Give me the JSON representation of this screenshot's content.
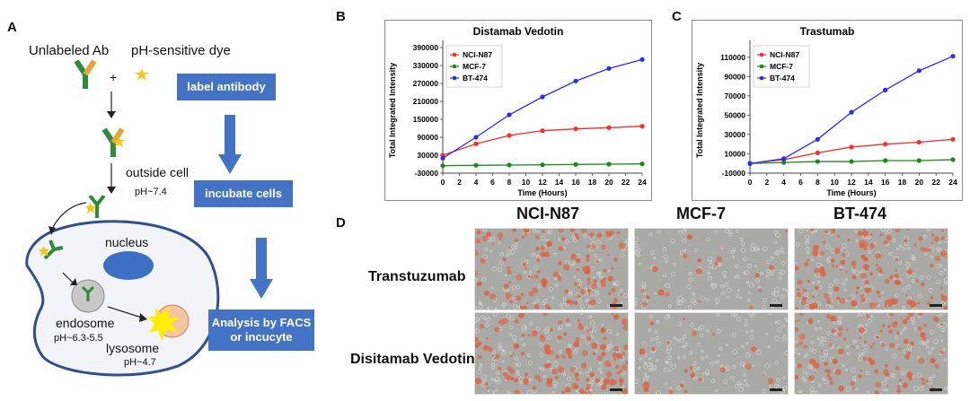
{
  "panel_a": {
    "letter": "A",
    "unlabeled_ab": "Unlabeled Ab",
    "plus": "+",
    "ph_dye": "pH-sensitive dye",
    "label_antibody": "label antibody",
    "outside_cell": "outside cell",
    "outside_ph": "pH~7.4",
    "incubate_cells": "incubate cells",
    "nucleus": "nucleus",
    "endosome": "endosome",
    "endosome_ph": "pH~6.3-5.5",
    "lysosome": "lysosome",
    "lysosome_ph": "pH~4.7",
    "analysis_line1": "Analysis by FACS",
    "analysis_line2": "or incucyte",
    "colors": {
      "box": "#4472c4",
      "antibody": "#2e8b3a",
      "dye": "#f5c518",
      "cell_outline": "#2f4f8f",
      "nucleus": "#3d6fc4"
    }
  },
  "panel_b": {
    "letter": "B"
  },
  "panel_c": {
    "letter": "C"
  },
  "panel_d": {
    "letter": "D",
    "columns": [
      "NCI-N87",
      "MCF-7",
      "BT-474"
    ],
    "rows": [
      "Transtuzumab",
      "Disitamab Vedotin"
    ],
    "cell_density": [
      [
        0.55,
        0.08,
        0.6
      ],
      [
        0.6,
        0.1,
        0.45
      ]
    ]
  },
  "chart_data": [
    {
      "type": "line",
      "title": "Distamab Vedotin",
      "xlabel": "Time (Hours)",
      "ylabel": "Total Integrated Intensity",
      "x": [
        0,
        4,
        8,
        12,
        16,
        20,
        24
      ],
      "xticks": [
        "0",
        "2",
        "4",
        "6",
        "8",
        "10",
        "12",
        "14",
        "16",
        "18",
        "20",
        "22",
        "24"
      ],
      "yticks": [
        "390000",
        "330000",
        "270000",
        "210000",
        "150000",
        "90000",
        "30000",
        "-30000"
      ],
      "ylim": [
        -30000,
        390000
      ],
      "xlim": [
        0,
        24
      ],
      "legend_position": "top-left",
      "series": [
        {
          "name": "NCI-N87",
          "color": "#ff2a2a",
          "values": [
            30000,
            68000,
            96000,
            112000,
            118000,
            122000,
            127000
          ]
        },
        {
          "name": "MCF-7",
          "color": "#1a8a1a",
          "values": [
            -5000,
            -4000,
            -3000,
            -2000,
            -1000,
            0,
            1000
          ]
        },
        {
          "name": "BT-474",
          "color": "#2a2aff",
          "values": [
            20000,
            90000,
            165000,
            225000,
            278000,
            320000,
            350000
          ]
        }
      ]
    },
    {
      "type": "line",
      "title": "Trastumab",
      "xlabel": "Time (Hours)",
      "ylabel": "Total Integrated Intensity",
      "x": [
        0,
        4,
        8,
        12,
        16,
        20,
        24
      ],
      "xticks": [
        "0",
        "2",
        "4",
        "6",
        "8",
        "10",
        "12",
        "14",
        "16",
        "18",
        "20",
        "22",
        "24"
      ],
      "yticks": [
        "110000",
        "90000",
        "70000",
        "50000",
        "30000",
        "10000",
        "-10000"
      ],
      "ylim": [
        -10000,
        120000
      ],
      "xlim": [
        0,
        24
      ],
      "legend_position": "top-left",
      "series": [
        {
          "name": "NCI-N87",
          "color": "#ff2a2a",
          "values": [
            0,
            4000,
            11000,
            17000,
            20000,
            22000,
            25000
          ]
        },
        {
          "name": "MCF-7",
          "color": "#1a8a1a",
          "values": [
            0,
            1000,
            2000,
            2000,
            3000,
            3000,
            4000
          ]
        },
        {
          "name": "BT-474",
          "color": "#2a2aff",
          "values": [
            0,
            5000,
            25000,
            53000,
            76000,
            96000,
            111000
          ]
        }
      ]
    }
  ]
}
